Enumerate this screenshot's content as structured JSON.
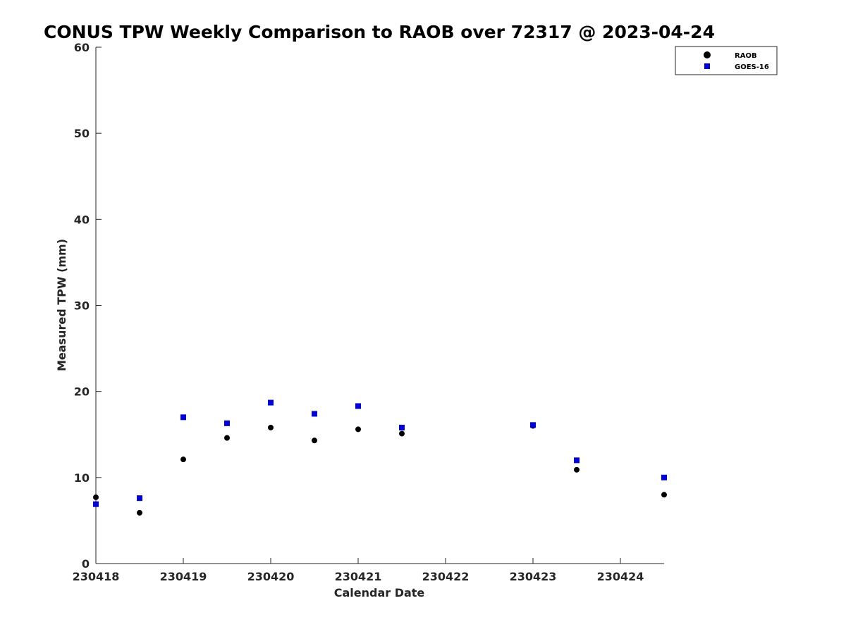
{
  "chart_data": {
    "type": "scatter",
    "title": "CONUS TPW Weekly Comparison to RAOB over 72317 @ 2023-04-24",
    "xlabel": "Calendar Date",
    "ylabel": "Measured TPW (mm)",
    "x_ticks": [
      "230418",
      "230419",
      "230420",
      "230421",
      "230422",
      "230423",
      "230424"
    ],
    "y_ticks": [
      "0",
      "10",
      "20",
      "30",
      "40",
      "50",
      "60"
    ],
    "xlim": [
      "2023-04-18 00:00",
      "2023-04-24 12:00"
    ],
    "ylim": [
      0,
      60
    ],
    "grid": false,
    "legend_position": "top-right",
    "series": [
      {
        "name": "RAOB",
        "marker": "circle",
        "color": "#000000",
        "points": [
          {
            "x": "2023-04-18 00:00",
            "y": 7.7
          },
          {
            "x": "2023-04-18 12:00",
            "y": 5.9
          },
          {
            "x": "2023-04-19 00:00",
            "y": 12.1
          },
          {
            "x": "2023-04-19 12:00",
            "y": 14.6
          },
          {
            "x": "2023-04-20 00:00",
            "y": 15.8
          },
          {
            "x": "2023-04-20 12:00",
            "y": 14.3
          },
          {
            "x": "2023-04-21 00:00",
            "y": 15.6
          },
          {
            "x": "2023-04-21 12:00",
            "y": 15.1
          },
          {
            "x": "2023-04-23 00:00",
            "y": 16.0
          },
          {
            "x": "2023-04-23 12:00",
            "y": 10.9
          },
          {
            "x": "2023-04-24 12:00",
            "y": 8.0
          }
        ]
      },
      {
        "name": "GOES-16",
        "marker": "square",
        "color": "#0000dd",
        "points": [
          {
            "x": "2023-04-18 00:00",
            "y": 6.9
          },
          {
            "x": "2023-04-18 12:00",
            "y": 7.6
          },
          {
            "x": "2023-04-19 00:00",
            "y": 17.0
          },
          {
            "x": "2023-04-19 12:00",
            "y": 16.3
          },
          {
            "x": "2023-04-20 00:00",
            "y": 18.7
          },
          {
            "x": "2023-04-20 12:00",
            "y": 17.4
          },
          {
            "x": "2023-04-21 00:00",
            "y": 18.3
          },
          {
            "x": "2023-04-21 12:00",
            "y": 15.8
          },
          {
            "x": "2023-04-23 00:00",
            "y": 16.1
          },
          {
            "x": "2023-04-23 12:00",
            "y": 12.0
          },
          {
            "x": "2023-04-24 12:00",
            "y": 10.0
          }
        ]
      }
    ]
  }
}
